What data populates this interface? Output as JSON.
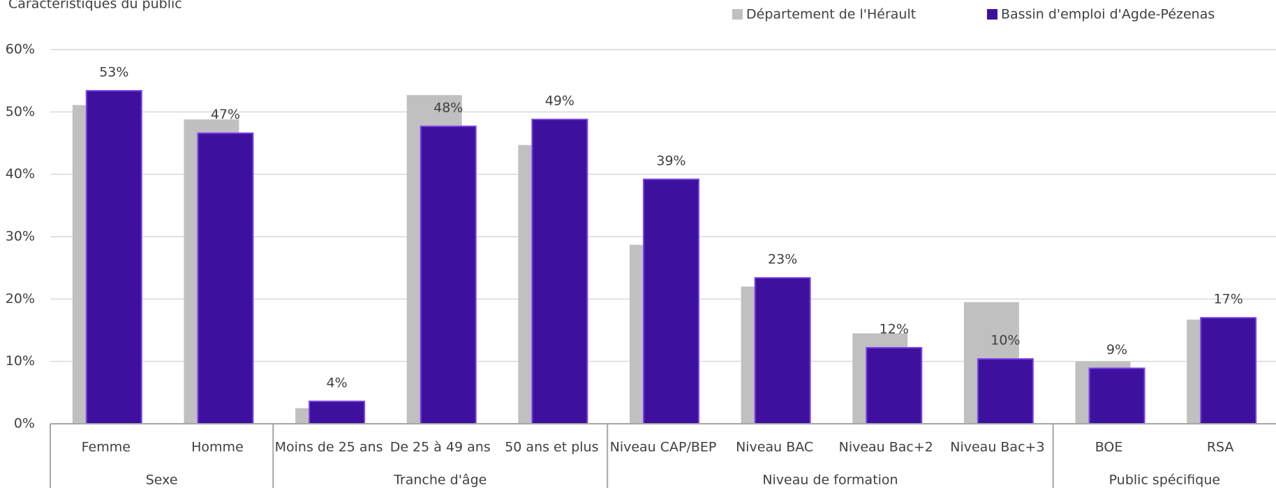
{
  "chart_data": {
    "type": "bar",
    "title": "Caractéristiques du public",
    "groups": [
      {
        "name": "Sexe",
        "categories": [
          "Femme",
          "Homme"
        ]
      },
      {
        "name": "Tranche d'âge",
        "categories": [
          "Moins de 25 ans",
          "De 25 à 49 ans",
          "50 ans et plus"
        ]
      },
      {
        "name": "Niveau de formation",
        "categories": [
          "Niveau CAP/BEP",
          "Niveau BAC",
          "Niveau Bac+2",
          "Niveau Bac+3"
        ]
      },
      {
        "name": "Public spécifique",
        "categories": [
          "BOE",
          "RSA"
        ]
      }
    ],
    "series": [
      {
        "name": "Département de l'Hérault",
        "color": "#c0c0c0",
        "values": [
          51.1,
          48.8,
          2.5,
          52.7,
          44.7,
          28.7,
          22.0,
          14.5,
          19.5,
          10.0,
          16.7
        ]
      },
      {
        "name": "Bassin d'emploi d'Agde-Pézenas",
        "color": "#3e109e",
        "values": [
          53.4,
          46.6,
          3.6,
          47.7,
          48.8,
          39.2,
          23.4,
          12.2,
          10.4,
          8.9,
          17.0
        ],
        "value_labels": [
          "53%",
          "47%",
          "4%",
          "48%",
          "49%",
          "39%",
          "23%",
          "12%",
          "10%",
          "9%",
          "17%"
        ]
      }
    ],
    "ylim": [
      0,
      60
    ],
    "yticks": [
      {
        "value": 0,
        "label": "0%"
      },
      {
        "value": 10,
        "label": "10%"
      },
      {
        "value": 20,
        "label": "20%"
      },
      {
        "value": 30,
        "label": "30%"
      },
      {
        "value": 40,
        "label": "40%"
      },
      {
        "value": 50,
        "label": "50%"
      },
      {
        "value": 60,
        "label": "60%"
      }
    ],
    "grid": true,
    "legend": "top-right"
  }
}
